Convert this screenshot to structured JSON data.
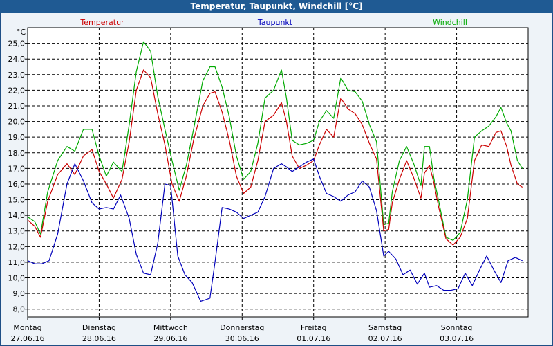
{
  "window": {
    "title": "Temperatur, Taupunkt, Windchill [°C]"
  },
  "colors": {
    "temperatur": "#cc0000",
    "taupunkt": "#0000bb",
    "windchill": "#00aa00",
    "grid": "#000000",
    "plot_bg": "#ffffff",
    "title_bg": "#1f5a93"
  },
  "chart_data": {
    "type": "line",
    "title": "Temperatur, Taupunkt, Windchill [°C]",
    "ylabel": "°C",
    "ylim": [
      7.5,
      26.0
    ],
    "yticks": [
      "8,0",
      "9,0",
      "10,0",
      "11,0",
      "12,0",
      "13,0",
      "14,0",
      "15,0",
      "16,0",
      "17,0",
      "18,0",
      "19,0",
      "20,0",
      "21,0",
      "22,0",
      "23,0",
      "24,0",
      "25,0"
    ],
    "grid": true,
    "x_range_days": [
      0,
      7
    ],
    "x_tick_labels": [
      {
        "day": "Montag",
        "date": "27.06.16"
      },
      {
        "day": "Dienstag",
        "date": "28.06.16"
      },
      {
        "day": "Mittwoch",
        "date": "29.06.16"
      },
      {
        "day": "Donnerstag",
        "date": "30.06.16"
      },
      {
        "day": "Freitag",
        "date": "01.07.16"
      },
      {
        "day": "Samstag",
        "date": "02.07.16"
      },
      {
        "day": "Sonntag",
        "date": "03.07.16"
      }
    ],
    "series": [
      {
        "name": "Temperatur",
        "x": [
          0.0,
          0.1,
          0.18,
          0.28,
          0.42,
          0.55,
          0.66,
          0.78,
          0.9,
          1.0,
          1.1,
          1.2,
          1.32,
          1.42,
          1.52,
          1.62,
          1.72,
          1.82,
          1.92,
          2.02,
          2.12,
          2.22,
          2.32,
          2.45,
          2.55,
          2.62,
          2.72,
          2.82,
          2.92,
          3.02,
          3.12,
          3.22,
          3.32,
          3.44,
          3.55,
          3.62,
          3.7,
          3.8,
          3.9,
          4.0,
          4.08,
          4.18,
          4.28,
          4.38,
          4.48,
          4.58,
          4.68,
          4.78,
          4.88,
          4.98,
          5.05,
          5.1,
          5.2,
          5.3,
          5.4,
          5.5,
          5.55,
          5.62,
          5.68,
          5.75,
          5.85,
          5.95,
          6.05,
          6.15,
          6.25,
          6.35,
          6.45,
          6.55,
          6.62,
          6.7,
          6.76,
          6.85,
          6.92
        ],
        "values": [
          13.7,
          13.3,
          12.6,
          14.9,
          16.6,
          17.3,
          16.6,
          17.8,
          18.2,
          16.8,
          16.0,
          15.1,
          16.3,
          18.7,
          22.0,
          23.3,
          22.8,
          20.5,
          18.5,
          16.0,
          14.9,
          16.5,
          18.8,
          21.0,
          21.8,
          21.9,
          20.6,
          18.8,
          16.5,
          15.4,
          15.8,
          17.5,
          20.0,
          20.4,
          21.2,
          20.0,
          17.8,
          17.0,
          17.2,
          17.5,
          18.5,
          19.5,
          19.0,
          21.5,
          20.8,
          20.5,
          19.8,
          18.6,
          17.6,
          13.0,
          13.1,
          14.8,
          16.3,
          17.5,
          16.4,
          15.1,
          16.7,
          17.2,
          16.1,
          14.5,
          12.5,
          12.1,
          12.6,
          13.8,
          17.5,
          18.5,
          18.4,
          19.3,
          19.4,
          18.4,
          17.2,
          16.0,
          15.8
        ]
      },
      {
        "name": "Taupunkt",
        "x": [
          0.0,
          0.1,
          0.2,
          0.3,
          0.42,
          0.55,
          0.66,
          0.78,
          0.9,
          1.0,
          1.1,
          1.2,
          1.3,
          1.42,
          1.52,
          1.62,
          1.72,
          1.82,
          1.92,
          2.0,
          2.1,
          2.2,
          2.3,
          2.42,
          2.55,
          2.62,
          2.72,
          2.82,
          2.92,
          3.02,
          3.12,
          3.22,
          3.32,
          3.44,
          3.55,
          3.62,
          3.7,
          3.8,
          3.9,
          4.0,
          4.08,
          4.18,
          4.28,
          4.38,
          4.48,
          4.58,
          4.68,
          4.78,
          4.88,
          4.98,
          5.05,
          5.15,
          5.25,
          5.35,
          5.45,
          5.55,
          5.62,
          5.72,
          5.82,
          5.92,
          6.02,
          6.12,
          6.22,
          6.32,
          6.42,
          6.52,
          6.62,
          6.72,
          6.82,
          6.92
        ],
        "values": [
          11.1,
          10.9,
          10.9,
          11.1,
          12.8,
          16.0,
          17.3,
          16.2,
          14.8,
          14.4,
          14.5,
          14.4,
          15.3,
          13.8,
          11.5,
          10.3,
          10.2,
          12.2,
          16.0,
          15.9,
          11.4,
          10.2,
          9.7,
          8.5,
          8.7,
          11.0,
          14.5,
          14.4,
          14.2,
          13.8,
          14.0,
          14.2,
          15.2,
          17.0,
          17.3,
          17.1,
          16.8,
          17.1,
          17.4,
          17.6,
          16.5,
          15.4,
          15.2,
          14.9,
          15.3,
          15.5,
          16.2,
          15.8,
          14.3,
          11.4,
          11.7,
          11.2,
          10.2,
          10.5,
          9.6,
          10.3,
          9.4,
          9.5,
          9.2,
          9.2,
          9.3,
          10.3,
          9.5,
          10.5,
          11.4,
          10.5,
          9.7,
          11.1,
          11.3,
          11.1
        ]
      },
      {
        "name": "Windchill",
        "x": [
          0.0,
          0.1,
          0.18,
          0.28,
          0.42,
          0.55,
          0.66,
          0.78,
          0.9,
          1.0,
          1.1,
          1.2,
          1.32,
          1.42,
          1.52,
          1.62,
          1.72,
          1.82,
          1.92,
          2.02,
          2.12,
          2.22,
          2.32,
          2.45,
          2.55,
          2.62,
          2.72,
          2.82,
          2.92,
          3.02,
          3.12,
          3.22,
          3.32,
          3.44,
          3.55,
          3.62,
          3.7,
          3.8,
          3.9,
          4.0,
          4.08,
          4.18,
          4.28,
          4.38,
          4.48,
          4.58,
          4.68,
          4.78,
          4.88,
          4.98,
          5.05,
          5.1,
          5.2,
          5.3,
          5.4,
          5.5,
          5.55,
          5.62,
          5.68,
          5.75,
          5.85,
          5.95,
          6.05,
          6.15,
          6.25,
          6.35,
          6.45,
          6.55,
          6.62,
          6.7,
          6.76,
          6.85,
          6.92
        ],
        "values": [
          13.9,
          13.6,
          12.8,
          15.5,
          17.5,
          18.4,
          18.1,
          19.5,
          19.5,
          17.8,
          16.5,
          17.4,
          16.8,
          19.8,
          23.2,
          25.1,
          24.5,
          21.6,
          19.5,
          17.5,
          15.6,
          17.2,
          19.5,
          22.6,
          23.5,
          23.5,
          22.2,
          20.3,
          17.8,
          16.3,
          16.8,
          18.6,
          21.5,
          22.0,
          23.3,
          21.5,
          18.8,
          18.5,
          18.6,
          18.8,
          20.0,
          20.7,
          20.2,
          22.8,
          22.0,
          21.9,
          21.3,
          19.8,
          18.7,
          13.4,
          13.5,
          15.5,
          17.5,
          18.4,
          17.3,
          15.9,
          18.4,
          18.4,
          16.4,
          14.9,
          12.6,
          12.4,
          12.9,
          15.0,
          19.0,
          19.4,
          19.7,
          20.3,
          20.9,
          19.9,
          19.4,
          17.5,
          17.0
        ]
      }
    ]
  }
}
